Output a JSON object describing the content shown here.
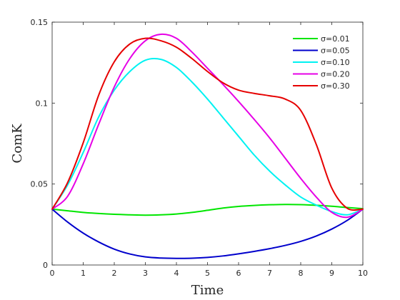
{
  "chart_data": {
    "type": "line",
    "title": "",
    "xlabel": "Time",
    "ylabel": "ComK",
    "xlim": [
      0,
      10
    ],
    "ylim": [
      0,
      0.15
    ],
    "xticks": [
      0,
      1,
      2,
      3,
      4,
      5,
      6,
      7,
      8,
      9,
      10
    ],
    "xtick_labels": [
      "0",
      "1",
      "2",
      "3",
      "4",
      "5",
      "6",
      "7",
      "8",
      "9",
      "10"
    ],
    "yticks": [
      0,
      0.05,
      0.1,
      0.15
    ],
    "ytick_labels": [
      "0",
      "0.05",
      "0.1",
      "0.15"
    ],
    "grid": false,
    "legend_position": "top-right",
    "x": [
      0,
      0.5,
      1,
      1.5,
      2,
      2.5,
      3,
      3.5,
      4,
      4.5,
      5,
      5.5,
      6,
      6.5,
      7,
      7.5,
      8,
      8.5,
      9,
      9.5,
      10
    ],
    "series": [
      {
        "name": "σ=0.01",
        "color": "#00e600",
        "values": [
          0.0345,
          0.0335,
          0.0325,
          0.0318,
          0.0313,
          0.031,
          0.0308,
          0.031,
          0.0315,
          0.0325,
          0.0338,
          0.0352,
          0.0362,
          0.0368,
          0.0372,
          0.0374,
          0.0373,
          0.0369,
          0.0363,
          0.0355,
          0.0348
        ]
      },
      {
        "name": "σ=0.05",
        "color": "#0000cc",
        "values": [
          0.0345,
          0.0265,
          0.0197,
          0.0142,
          0.0098,
          0.0068,
          0.005,
          0.0043,
          0.0041,
          0.0042,
          0.0047,
          0.0056,
          0.0069,
          0.0084,
          0.0101,
          0.0121,
          0.0146,
          0.0179,
          0.0222,
          0.0276,
          0.0345
        ]
      },
      {
        "name": "σ=0.10",
        "color": "#00f2f2",
        "values": [
          0.0345,
          0.0495,
          0.0695,
          0.0915,
          0.108,
          0.1195,
          0.1265,
          0.127,
          0.122,
          0.113,
          0.1025,
          0.091,
          0.0795,
          0.068,
          0.058,
          0.0495,
          0.042,
          0.037,
          0.033,
          0.031,
          0.0345
        ]
      },
      {
        "name": "σ=0.20",
        "color": "#e600e6",
        "values": [
          0.0345,
          0.0425,
          0.0625,
          0.087,
          0.11,
          0.1275,
          0.1385,
          0.1425,
          0.14,
          0.1315,
          0.1215,
          0.1115,
          0.101,
          0.09,
          0.0785,
          0.066,
          0.0535,
          0.042,
          0.0325,
          0.0295,
          0.0345
        ]
      },
      {
        "name": "σ=0.30",
        "color": "#e60000",
        "values": [
          0.0345,
          0.051,
          0.0755,
          0.105,
          0.1255,
          0.1365,
          0.14,
          0.1385,
          0.1345,
          0.1275,
          0.1195,
          0.1125,
          0.108,
          0.106,
          0.1045,
          0.1025,
          0.0955,
          0.0745,
          0.0475,
          0.035,
          0.0345
        ]
      }
    ]
  }
}
